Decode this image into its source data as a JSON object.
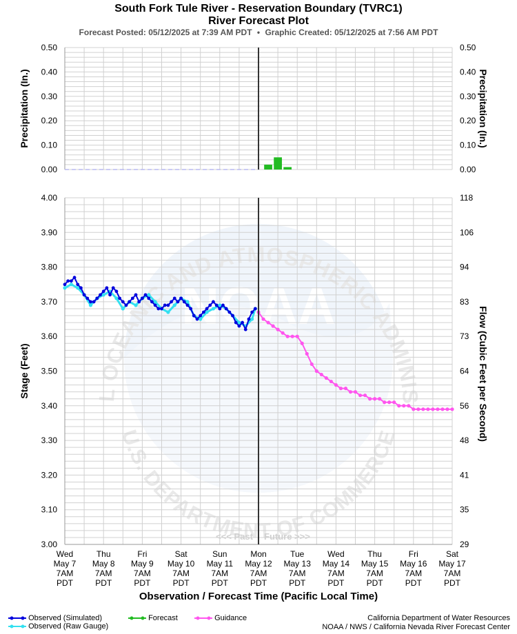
{
  "header": {
    "title": "South Fork Tule River - Reservation Boundary (TVRC1)",
    "subtitle": "River Forecast Plot",
    "posted": "Forecast Posted: 05/12/2025 at 7:39 AM PDT",
    "bullet": "•",
    "created": "Graphic Created: 05/12/2025 at 7:56 AM PDT"
  },
  "watermark": {
    "noaa_arc": "NATIONAL OCEANIC AND ATMOSPHERIC ADMINISTRATION",
    "commerce_arc": "U.S. DEPARTMENT OF COMMERCE",
    "logo": "NOAA"
  },
  "chart_data": [
    {
      "type": "bar",
      "name": "precipitation",
      "ylabel_left": "Precipitation (In.)",
      "ylabel_right": "Precipitation (In.)",
      "ylim": [
        0,
        0.5
      ],
      "yticks": [
        "0.00",
        "0.10",
        "0.20",
        "0.30",
        "0.40",
        "0.50"
      ],
      "x_unit": "hours since Wed May 7 7AM PDT",
      "xlim": [
        0,
        240
      ],
      "observed_baseline": {
        "x": [
          0,
          120
        ],
        "value": 0.0
      },
      "bars": [
        {
          "x": 126,
          "value": 0.02
        },
        {
          "x": 132,
          "value": 0.05
        },
        {
          "x": 138,
          "value": 0.01
        }
      ]
    },
    {
      "type": "line",
      "name": "stage_flow",
      "xlabel": "Observation / Forecast Time (Pacific Local Time)",
      "ylabel_left": "Stage (Feet)",
      "ylabel_right": "Flow (Cubic Feet per Second)",
      "ylim": [
        3.0,
        4.0
      ],
      "yticks": [
        "3.00",
        "3.10",
        "3.20",
        "3.30",
        "3.40",
        "3.50",
        "3.60",
        "3.70",
        "3.80",
        "3.90",
        "4.00"
      ],
      "flow_ticks": [
        "29",
        "35",
        "41",
        "48",
        "56",
        "64",
        "73",
        "83",
        "94",
        "106",
        "118"
      ],
      "xlim": [
        0,
        240
      ],
      "now_x": 120,
      "past_label": "<<< Past",
      "future_label": "Future >>>",
      "xtick_labels": [
        [
          "Wed",
          "May 7",
          "7AM",
          "PDT"
        ],
        [
          "Thu",
          "May 8",
          "7AM",
          "PDT"
        ],
        [
          "Fri",
          "May 9",
          "7AM",
          "PDT"
        ],
        [
          "Sat",
          "May 10",
          "7AM",
          "PDT"
        ],
        [
          "Sun",
          "May 11",
          "7AM",
          "PDT"
        ],
        [
          "Mon",
          "May 12",
          "7AM",
          "PDT"
        ],
        [
          "Tue",
          "May 13",
          "7AM",
          "PDT"
        ],
        [
          "Wed",
          "May 14",
          "7AM",
          "PDT"
        ],
        [
          "Thu",
          "May 15",
          "7AM",
          "PDT"
        ],
        [
          "Fri",
          "May 16",
          "7AM",
          "PDT"
        ],
        [
          "Sat",
          "May 17",
          "7AM",
          "PDT"
        ]
      ],
      "series": [
        {
          "name": "Observed (Raw Gauge)",
          "color": "#33e0f0",
          "x": [
            0,
            4,
            8,
            12,
            16,
            20,
            24,
            28,
            32,
            36,
            40,
            44,
            48,
            52,
            56,
            60,
            64,
            68,
            72,
            76,
            80,
            84,
            88,
            92,
            96,
            100,
            104,
            108,
            112,
            116,
            118
          ],
          "values": [
            3.74,
            3.75,
            3.74,
            3.72,
            3.69,
            3.71,
            3.72,
            3.73,
            3.71,
            3.68,
            3.7,
            3.69,
            3.71,
            3.72,
            3.7,
            3.68,
            3.67,
            3.69,
            3.71,
            3.7,
            3.66,
            3.65,
            3.67,
            3.68,
            3.69,
            3.68,
            3.66,
            3.64,
            3.63,
            3.65,
            3.68
          ]
        },
        {
          "name": "Observed (Simulated)",
          "color": "#0000dd",
          "x": [
            0,
            2,
            4,
            6,
            8,
            10,
            12,
            14,
            16,
            18,
            20,
            22,
            24,
            26,
            28,
            30,
            32,
            34,
            36,
            38,
            40,
            42,
            44,
            46,
            48,
            50,
            52,
            54,
            56,
            58,
            60,
            62,
            64,
            66,
            68,
            70,
            72,
            74,
            76,
            78,
            80,
            82,
            84,
            86,
            88,
            90,
            92,
            94,
            96,
            98,
            100,
            102,
            104,
            106,
            108,
            110,
            112,
            114,
            116,
            118
          ],
          "values": [
            3.75,
            3.76,
            3.76,
            3.77,
            3.75,
            3.74,
            3.72,
            3.71,
            3.7,
            3.7,
            3.71,
            3.72,
            3.73,
            3.74,
            3.72,
            3.74,
            3.73,
            3.71,
            3.7,
            3.69,
            3.7,
            3.71,
            3.72,
            3.7,
            3.71,
            3.72,
            3.71,
            3.7,
            3.69,
            3.68,
            3.68,
            3.69,
            3.69,
            3.7,
            3.71,
            3.7,
            3.71,
            3.7,
            3.69,
            3.68,
            3.66,
            3.65,
            3.66,
            3.67,
            3.68,
            3.69,
            3.7,
            3.69,
            3.68,
            3.69,
            3.68,
            3.67,
            3.66,
            3.64,
            3.63,
            3.64,
            3.62,
            3.65,
            3.67,
            3.68
          ]
        },
        {
          "name": "Forecast",
          "color": "#22bb22",
          "x": [],
          "values": []
        },
        {
          "name": "Guidance",
          "color": "#ff55ee",
          "x": [
            120,
            123,
            126,
            129,
            132,
            135,
            138,
            141,
            144,
            147,
            150,
            153,
            156,
            159,
            162,
            165,
            168,
            171,
            174,
            177,
            180,
            183,
            186,
            189,
            192,
            195,
            198,
            201,
            204,
            207,
            210,
            213,
            216,
            219,
            222,
            225,
            228,
            231,
            234,
            237,
            240
          ],
          "values": [
            3.67,
            3.65,
            3.64,
            3.63,
            3.62,
            3.61,
            3.6,
            3.6,
            3.6,
            3.58,
            3.55,
            3.52,
            3.5,
            3.49,
            3.48,
            3.47,
            3.46,
            3.45,
            3.45,
            3.44,
            3.44,
            3.43,
            3.43,
            3.42,
            3.42,
            3.42,
            3.41,
            3.41,
            3.41,
            3.4,
            3.4,
            3.4,
            3.39,
            3.39,
            3.39,
            3.39,
            3.39,
            3.39,
            3.39,
            3.39,
            3.39
          ]
        }
      ]
    }
  ],
  "legend": {
    "observed_simulated": "Observed (Simulated)",
    "observed_raw": "Observed (Raw Gauge)",
    "forecast": "Forecast",
    "guidance": "Guidance"
  },
  "credits": {
    "line1": "California Department of Water Resources",
    "line2": "NOAA / NWS / California Nevada River Forecast Center"
  }
}
